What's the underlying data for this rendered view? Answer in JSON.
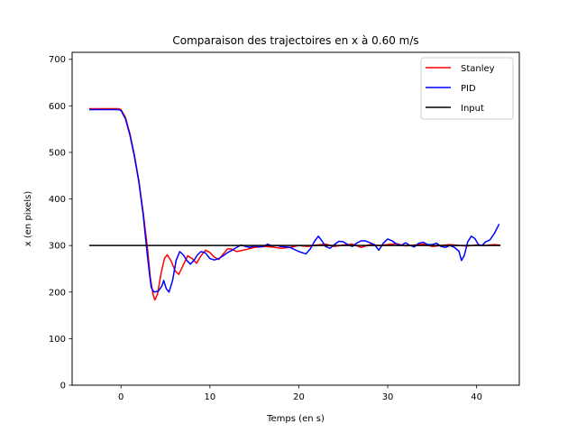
{
  "chart_data": {
    "type": "line",
    "title": "Comparaison des trajectoires en x à 0.60 m/s",
    "xlabel": "Temps (en s)",
    "ylabel": "x (en pixels)",
    "xlim": [
      -5.5,
      44.8
    ],
    "ylim": [
      0,
      715
    ],
    "xticks": [
      0,
      10,
      20,
      30,
      40
    ],
    "yticks": [
      0,
      100,
      200,
      300,
      400,
      500,
      600,
      700
    ],
    "grid": false,
    "legend_position": "top-right",
    "series": [
      {
        "name": "Stanley",
        "color": "#ff0000",
        "points": [
          [
            -3.5,
            594
          ],
          [
            -0.3,
            594
          ],
          [
            0.0,
            592
          ],
          [
            0.5,
            575
          ],
          [
            1.0,
            540
          ],
          [
            1.5,
            495
          ],
          [
            2.0,
            440
          ],
          [
            2.5,
            370
          ],
          [
            3.0,
            290
          ],
          [
            3.3,
            230
          ],
          [
            3.6,
            195
          ],
          [
            3.8,
            183
          ],
          [
            4.1,
            195
          ],
          [
            4.5,
            240
          ],
          [
            4.9,
            273
          ],
          [
            5.2,
            280
          ],
          [
            5.6,
            268
          ],
          [
            6.1,
            245
          ],
          [
            6.5,
            238
          ],
          [
            7.0,
            258
          ],
          [
            7.5,
            278
          ],
          [
            8.0,
            272
          ],
          [
            8.5,
            262
          ],
          [
            9.0,
            278
          ],
          [
            9.5,
            290
          ],
          [
            10.0,
            285
          ],
          [
            10.5,
            275
          ],
          [
            11.0,
            270
          ],
          [
            11.5,
            282
          ],
          [
            12.0,
            293
          ],
          [
            12.5,
            292
          ],
          [
            13.0,
            287
          ],
          [
            14.0,
            291
          ],
          [
            15.0,
            296
          ],
          [
            16.0,
            298
          ],
          [
            17.0,
            297
          ],
          [
            18.0,
            294
          ],
          [
            19.0,
            296
          ],
          [
            20.0,
            300
          ],
          [
            21.0,
            298
          ],
          [
            22.0,
            301
          ],
          [
            23.0,
            303
          ],
          [
            24.0,
            298
          ],
          [
            25.0,
            301
          ],
          [
            26.0,
            303
          ],
          [
            27.0,
            296
          ],
          [
            28.0,
            302
          ],
          [
            29.0,
            300
          ],
          [
            30.0,
            302
          ],
          [
            31.0,
            304
          ],
          [
            32.0,
            299
          ],
          [
            33.0,
            301
          ],
          [
            34.0,
            303
          ],
          [
            35.0,
            298
          ],
          [
            36.0,
            300
          ],
          [
            37.0,
            302
          ],
          [
            38.0,
            300
          ],
          [
            39.0,
            299
          ],
          [
            40.0,
            301
          ],
          [
            41.0,
            300
          ],
          [
            42.0,
            302
          ],
          [
            42.6,
            301
          ]
        ]
      },
      {
        "name": "PID",
        "color": "#0000ff",
        "points": [
          [
            -3.5,
            592
          ],
          [
            -0.3,
            592
          ],
          [
            0.0,
            590
          ],
          [
            0.5,
            572
          ],
          [
            1.0,
            537
          ],
          [
            1.5,
            492
          ],
          [
            2.0,
            437
          ],
          [
            2.5,
            365
          ],
          [
            2.9,
            290
          ],
          [
            3.2,
            240
          ],
          [
            3.4,
            210
          ],
          [
            3.7,
            200
          ],
          [
            4.2,
            202
          ],
          [
            4.6,
            213
          ],
          [
            4.8,
            225
          ],
          [
            5.1,
            207
          ],
          [
            5.4,
            200
          ],
          [
            5.8,
            225
          ],
          [
            6.2,
            268
          ],
          [
            6.6,
            287
          ],
          [
            7.0,
            280
          ],
          [
            7.4,
            268
          ],
          [
            7.8,
            260
          ],
          [
            8.2,
            268
          ],
          [
            8.6,
            280
          ],
          [
            9.0,
            287
          ],
          [
            9.5,
            284
          ],
          [
            10.0,
            272
          ],
          [
            10.5,
            269
          ],
          [
            11.0,
            272
          ],
          [
            11.5,
            278
          ],
          [
            12.0,
            285
          ],
          [
            12.5,
            290
          ],
          [
            13.0,
            296
          ],
          [
            13.5,
            301
          ],
          [
            14.0,
            298
          ],
          [
            14.5,
            296
          ],
          [
            15.0,
            299
          ],
          [
            15.5,
            297
          ],
          [
            16.0,
            298
          ],
          [
            16.5,
            303
          ],
          [
            17.0,
            299
          ],
          [
            17.5,
            300
          ],
          [
            18.0,
            298
          ],
          [
            19.0,
            296
          ],
          [
            20.0,
            287
          ],
          [
            20.8,
            282
          ],
          [
            21.3,
            293
          ],
          [
            21.8,
            310
          ],
          [
            22.2,
            320
          ],
          [
            22.6,
            310
          ],
          [
            23.0,
            298
          ],
          [
            23.5,
            294
          ],
          [
            24.0,
            302
          ],
          [
            24.5,
            309
          ],
          [
            25.0,
            308
          ],
          [
            25.5,
            302
          ],
          [
            26.0,
            298
          ],
          [
            26.5,
            305
          ],
          [
            27.0,
            310
          ],
          [
            27.5,
            310
          ],
          [
            28.0,
            306
          ],
          [
            28.5,
            302
          ],
          [
            29.0,
            290
          ],
          [
            29.5,
            305
          ],
          [
            30.0,
            314
          ],
          [
            30.5,
            310
          ],
          [
            31.0,
            303
          ],
          [
            31.5,
            300
          ],
          [
            32.0,
            306
          ],
          [
            32.5,
            300
          ],
          [
            33.0,
            297
          ],
          [
            33.5,
            305
          ],
          [
            34.0,
            307
          ],
          [
            34.5,
            302
          ],
          [
            35.0,
            302
          ],
          [
            35.5,
            305
          ],
          [
            36.0,
            298
          ],
          [
            36.5,
            296
          ],
          [
            37.0,
            300
          ],
          [
            37.5,
            296
          ],
          [
            38.0,
            288
          ],
          [
            38.3,
            268
          ],
          [
            38.6,
            278
          ],
          [
            39.0,
            308
          ],
          [
            39.4,
            320
          ],
          [
            39.8,
            315
          ],
          [
            40.2,
            302
          ],
          [
            40.6,
            300
          ],
          [
            41.0,
            308
          ],
          [
            41.5,
            312
          ],
          [
            42.0,
            326
          ],
          [
            42.5,
            345
          ]
        ]
      },
      {
        "name": "Input",
        "color": "#000000",
        "points": [
          [
            -3.5,
            300
          ],
          [
            42.6,
            300
          ]
        ]
      }
    ]
  }
}
